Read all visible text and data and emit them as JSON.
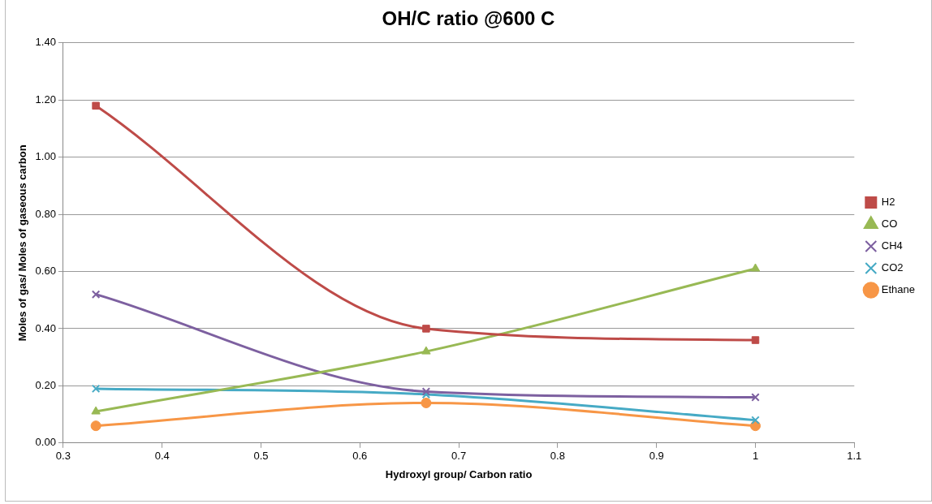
{
  "chart_data": {
    "type": "line",
    "title": "OH/C ratio @600 C",
    "xlabel": "Hydroxyl group/ Carbon ratio",
    "ylabel": "Moles of gas/ Moles of gaseous carbon",
    "x": [
      0.333,
      0.667,
      1
    ],
    "series": [
      {
        "name": "H2",
        "color": "#be4b48",
        "marker": "square",
        "values": [
          1.18,
          0.4,
          0.36
        ]
      },
      {
        "name": "CO",
        "color": "#98b954",
        "marker": "triangle",
        "values": [
          0.11,
          0.32,
          0.61
        ]
      },
      {
        "name": "CH4",
        "color": "#7d60a0",
        "marker": "cross",
        "values": [
          0.52,
          0.18,
          0.16
        ]
      },
      {
        "name": "CO2",
        "color": "#46aac5",
        "marker": "cross",
        "values": [
          0.19,
          0.17,
          0.08
        ]
      },
      {
        "name": "Ethane",
        "color": "#f79646",
        "marker": "circle",
        "values": [
          0.06,
          0.14,
          0.06
        ]
      }
    ],
    "xlim": [
      0.3,
      1.1
    ],
    "xticks": [
      0.3,
      0.4,
      0.5,
      0.6,
      0.7,
      0.8,
      0.9,
      1,
      1.1
    ],
    "ylim": [
      0,
      1.4
    ],
    "yticks": [
      {
        "value": 0,
        "label": "0.00"
      },
      {
        "value": 0.2,
        "label": "0.20"
      },
      {
        "value": 0.4,
        "label": "0.40"
      },
      {
        "value": 0.6,
        "label": "0.60"
      },
      {
        "value": 0.8,
        "label": "0.80"
      },
      {
        "value": 1.0,
        "label": "1.00"
      },
      {
        "value": 1.2,
        "label": "1.20"
      },
      {
        "value": 1.4,
        "label": "1.40"
      }
    ],
    "grid": "y",
    "legend": "right",
    "line_style": "solid"
  }
}
